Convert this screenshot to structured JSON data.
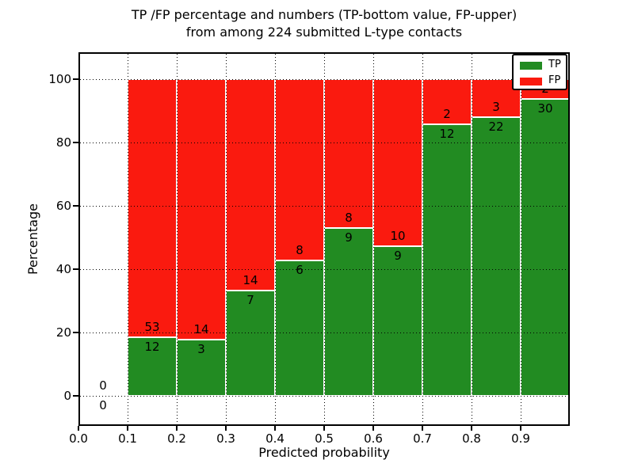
{
  "chart_data": {
    "type": "bar",
    "stacked": true,
    "title_line1": "TP /FP percentage and numbers (TP-bottom value, FP-upper)",
    "title_line2": "from among 224 submitted L-type contacts",
    "xlabel": "Predicted probability",
    "ylabel": "Percentage",
    "xlim": [
      0.0,
      1.0
    ],
    "ylim": [
      -9.5,
      108.5
    ],
    "xticks": [
      0.0,
      0.1,
      0.2,
      0.3,
      0.4,
      0.5,
      0.6,
      0.7,
      0.8,
      0.9
    ],
    "yticks": [
      0,
      20,
      40,
      60,
      80,
      100
    ],
    "grid": true,
    "bar_unit": "percent of bin (stacked to 100%)",
    "total_contacts": 224,
    "bin_width": 0.1,
    "categories": [
      "0.0-0.1",
      "0.1-0.2",
      "0.2-0.3",
      "0.3-0.4",
      "0.4-0.5",
      "0.5-0.6",
      "0.6-0.7",
      "0.7-0.8",
      "0.8-0.9",
      "0.9-1.0"
    ],
    "series": [
      {
        "name": "TP",
        "color": "#228B22",
        "counts": [
          0,
          12,
          3,
          7,
          6,
          9,
          9,
          12,
          22,
          30
        ]
      },
      {
        "name": "FP",
        "color": "#FA1A0F",
        "counts": [
          0,
          53,
          14,
          14,
          8,
          8,
          10,
          2,
          3,
          2
        ]
      }
    ],
    "tp_pct": [
      null,
      18.46,
      17.65,
      33.33,
      42.86,
      52.94,
      47.37,
      85.71,
      88.0,
      93.75
    ],
    "legend_position": "upper right",
    "legend_items": [
      {
        "label": "TP",
        "color": "#228B22"
      },
      {
        "label": "FP",
        "color": "#FA1A0F"
      }
    ]
  }
}
